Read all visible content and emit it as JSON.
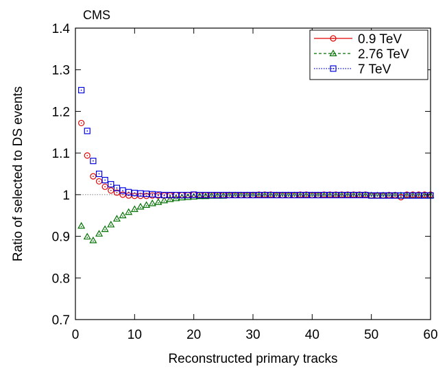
{
  "chart_data": {
    "type": "scatter",
    "title": "",
    "annotation": "CMS",
    "xlabel": "Reconstructed primary tracks",
    "ylabel": "Ratio of selected to DS events",
    "xlim": [
      0,
      60
    ],
    "ylim": [
      0.7,
      1.4
    ],
    "xticks": [
      "0",
      "10",
      "20",
      "30",
      "40",
      "50",
      "60"
    ],
    "yticks": [
      "0.7",
      "0.8",
      "0.9",
      "1",
      "1.1",
      "1.2",
      "1.3",
      "1.4"
    ],
    "reference_line": 1,
    "legend_position": "top-right",
    "grid": false,
    "series": [
      {
        "name": "0.9 TeV",
        "color": "#e00000",
        "marker": "circle",
        "line_style": "solid",
        "x": [
          1,
          2,
          3,
          4,
          5,
          6,
          7,
          8,
          9,
          10,
          11,
          12,
          13,
          14,
          15,
          16,
          17,
          18,
          19,
          20,
          21,
          22,
          23,
          24,
          25,
          26,
          27,
          28,
          29,
          30,
          31,
          32,
          33,
          34,
          35,
          36,
          37,
          38,
          39,
          40,
          41,
          42,
          43,
          44,
          45,
          46,
          47,
          48,
          49,
          50,
          51,
          52,
          53,
          54,
          55,
          56,
          57,
          58,
          59,
          60
        ],
        "y": [
          1.172,
          1.094,
          1.044,
          1.032,
          1.019,
          1.01,
          1.005,
          1.0,
          0.998,
          0.997,
          0.997,
          0.997,
          0.998,
          0.998,
          0.998,
          0.998,
          0.999,
          0.999,
          0.999,
          1.0,
          0.999,
          0.999,
          0.999,
          0.999,
          0.999,
          0.999,
          0.999,
          0.999,
          0.999,
          0.999,
          1.0,
          1.0,
          1.0,
          0.999,
          0.999,
          0.999,
          0.999,
          1.0,
          1.0,
          0.999,
          0.999,
          1.0,
          1.0,
          1.0,
          1.0,
          1.0,
          1.0,
          1.0,
          1.0,
          0.998,
          0.998,
          0.998,
          0.999,
          0.999,
          0.994,
          1.0,
          1.0,
          1.0,
          1.0,
          1.0
        ]
      },
      {
        "name": "2.76 TeV",
        "color": "#007000",
        "marker": "triangle",
        "line_style": "dashed",
        "x": [
          1,
          2,
          3,
          4,
          5,
          6,
          7,
          8,
          9,
          10,
          11,
          12,
          13,
          14,
          15,
          16,
          17,
          18,
          19,
          20,
          21,
          22,
          23,
          24,
          25,
          26,
          27,
          28,
          29,
          30,
          31,
          32,
          33,
          34,
          35,
          36,
          37,
          38,
          39,
          40,
          41,
          42,
          43,
          44,
          45,
          46,
          47,
          48,
          49,
          50,
          51,
          52,
          53,
          54,
          55,
          56,
          57,
          58,
          59,
          60
        ],
        "y": [
          0.925,
          0.899,
          0.89,
          0.906,
          0.917,
          0.928,
          0.942,
          0.95,
          0.958,
          0.965,
          0.971,
          0.975,
          0.979,
          0.982,
          0.986,
          0.989,
          0.991,
          0.993,
          0.994,
          0.995,
          0.996,
          0.996,
          0.997,
          0.997,
          0.997,
          0.998,
          0.998,
          0.998,
          0.998,
          0.998,
          0.998,
          0.998,
          0.998,
          0.998,
          0.998,
          0.998,
          0.998,
          0.998,
          0.998,
          0.998,
          0.998,
          0.998,
          0.998,
          0.998,
          0.998,
          0.998,
          0.998,
          0.998,
          0.998,
          0.998,
          0.998,
          0.998,
          0.998,
          0.998,
          0.998,
          0.998,
          0.998,
          0.998,
          0.998,
          0.998
        ]
      },
      {
        "name": "7 TeV",
        "color": "#0000e0",
        "marker": "square",
        "line_style": "dotted",
        "x": [
          1,
          2,
          3,
          4,
          5,
          6,
          7,
          8,
          9,
          10,
          11,
          12,
          13,
          14,
          15,
          16,
          17,
          18,
          19,
          20,
          21,
          22,
          23,
          24,
          25,
          26,
          27,
          28,
          29,
          30,
          31,
          32,
          33,
          34,
          35,
          36,
          37,
          38,
          39,
          40,
          41,
          42,
          43,
          44,
          45,
          46,
          47,
          48,
          49,
          50,
          51,
          52,
          53,
          54,
          55,
          56,
          57,
          58,
          59,
          60
        ],
        "y": [
          1.251,
          1.153,
          1.081,
          1.05,
          1.035,
          1.025,
          1.016,
          1.01,
          1.006,
          1.004,
          1.003,
          1.002,
          1.001,
          1.0,
          0.999,
          0.999,
          0.999,
          0.999,
          0.999,
          1.0,
          0.999,
          0.999,
          0.999,
          0.999,
          0.999,
          0.999,
          0.999,
          0.999,
          0.999,
          0.999,
          0.999,
          0.999,
          0.999,
          0.999,
          0.999,
          0.999,
          0.999,
          0.999,
          0.999,
          0.999,
          0.999,
          0.999,
          0.999,
          0.999,
          0.999,
          0.999,
          0.999,
          0.999,
          0.999,
          0.998,
          0.998,
          0.998,
          0.998,
          0.998,
          0.998,
          0.998,
          0.998,
          0.998,
          0.998,
          0.998
        ]
      }
    ]
  }
}
